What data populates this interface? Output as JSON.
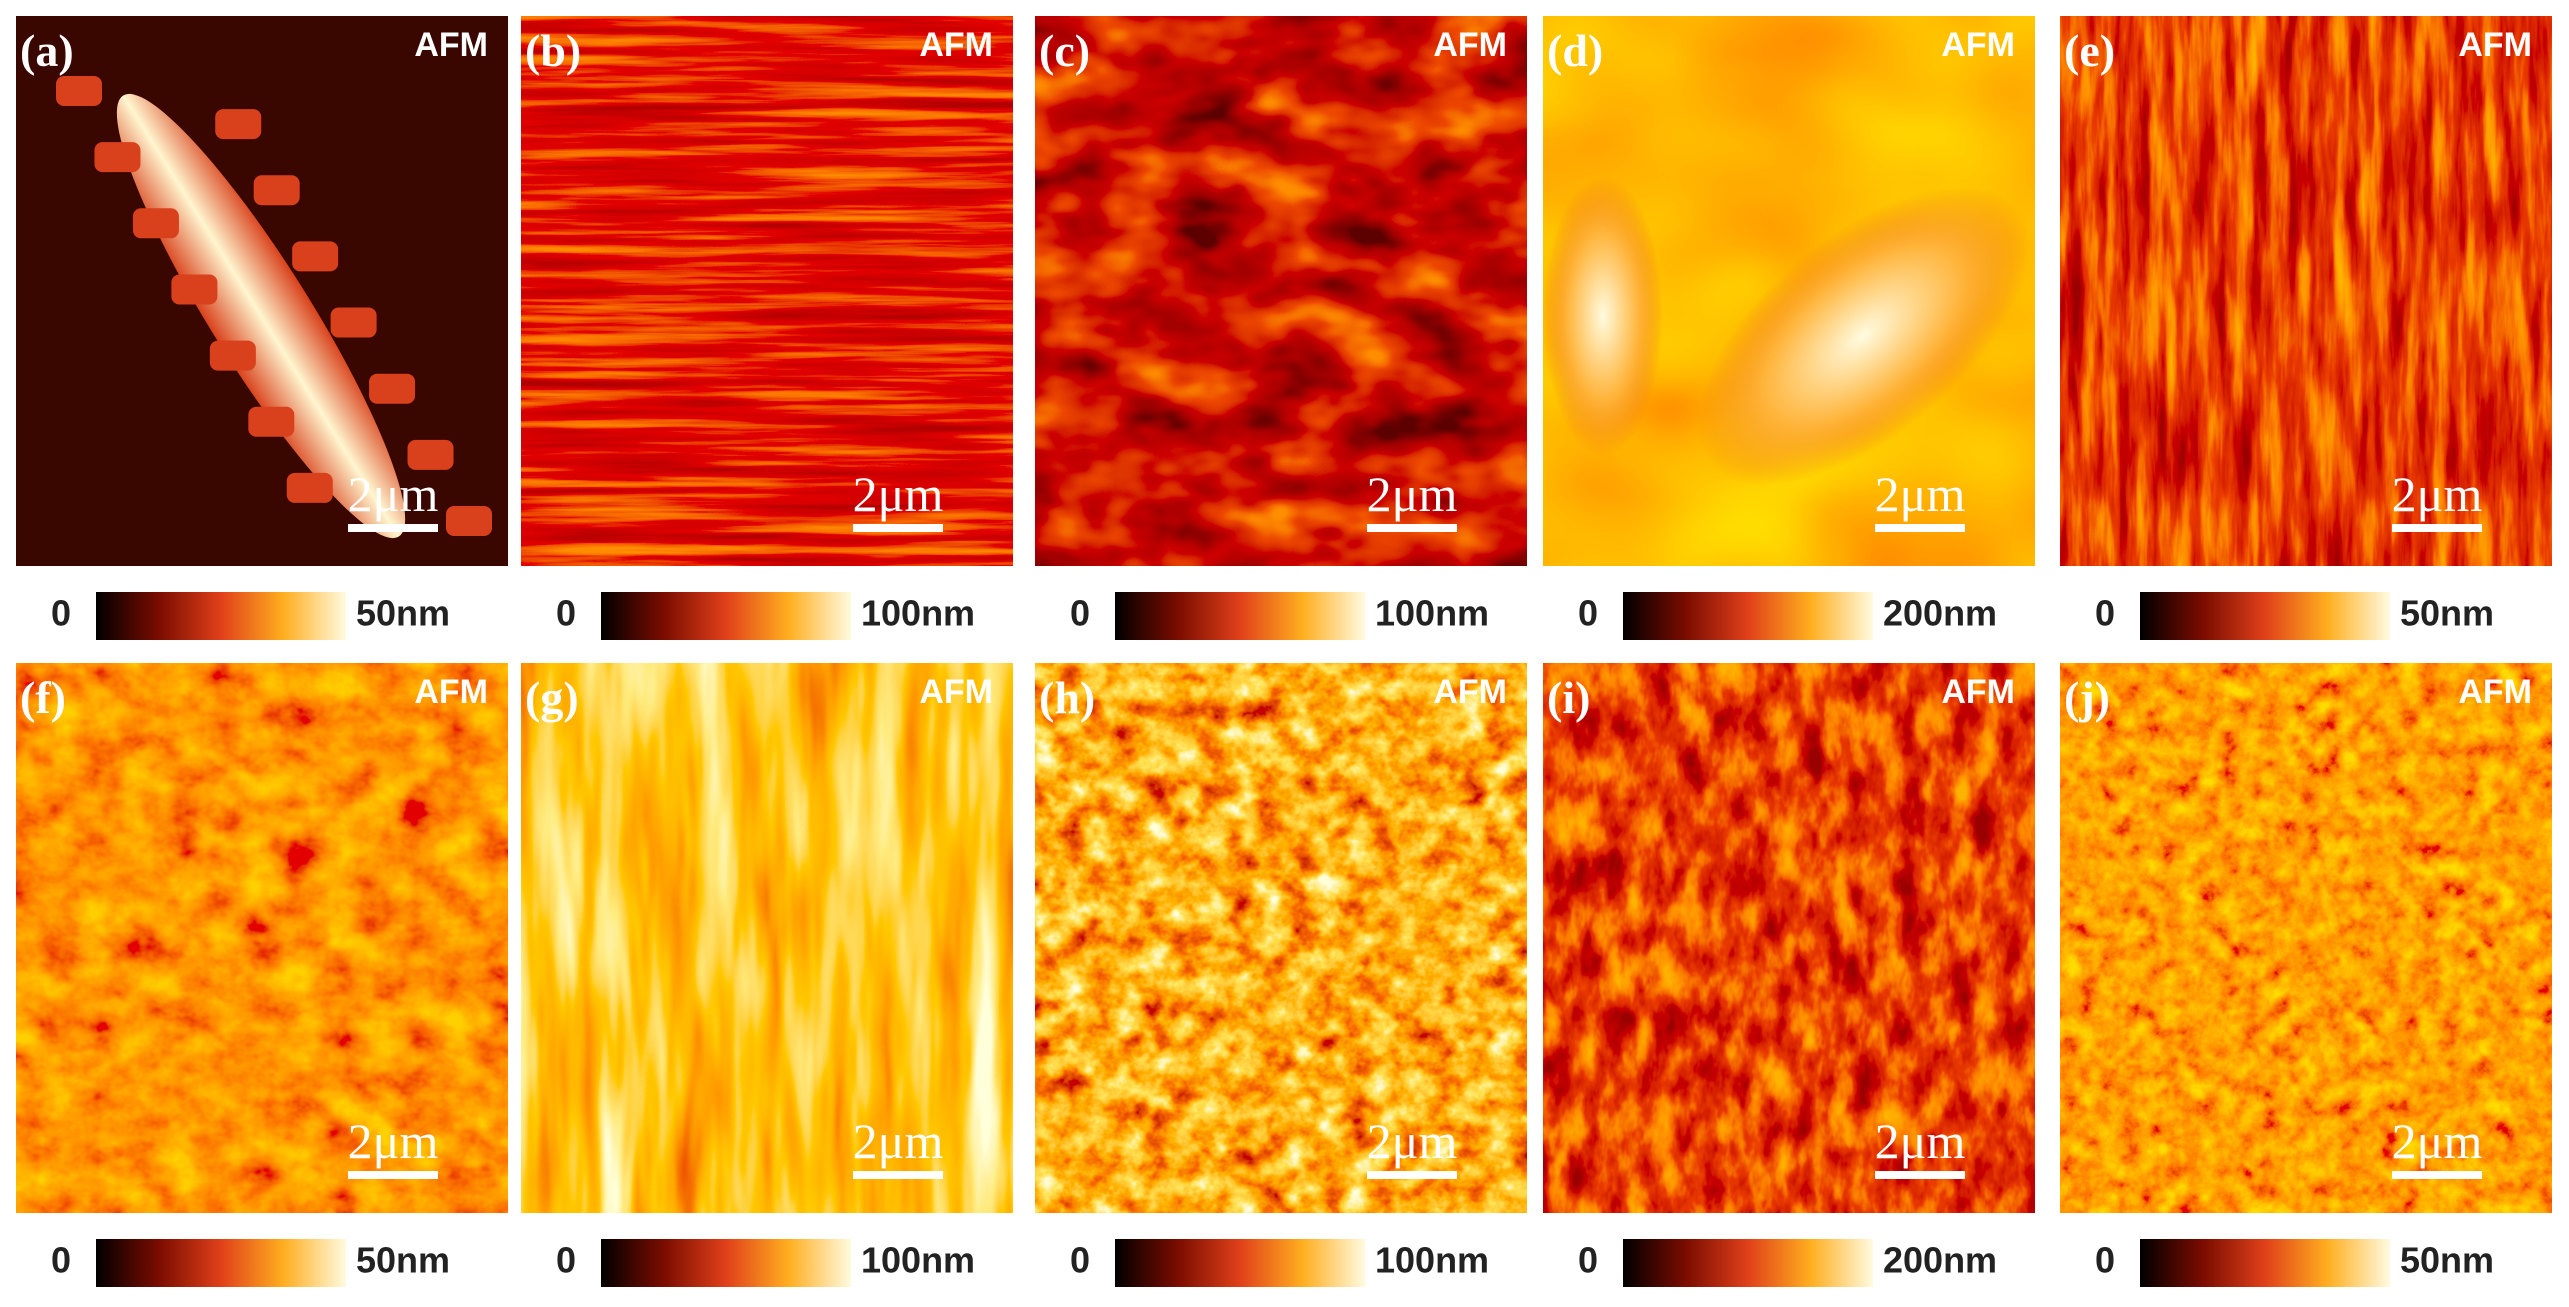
{
  "panels": [
    {
      "label": "(a)",
      "tag": "AFM",
      "scale_bar": "2μm",
      "colorbar": {
        "min": "0",
        "max": "50nm"
      }
    },
    {
      "label": "(b)",
      "tag": "AFM",
      "scale_bar": "2μm",
      "colorbar": {
        "min": "0",
        "max": "100nm"
      }
    },
    {
      "label": "(c)",
      "tag": "AFM",
      "scale_bar": "2μm",
      "colorbar": {
        "min": "0",
        "max": "100nm"
      }
    },
    {
      "label": "(d)",
      "tag": "AFM",
      "scale_bar": "2μm",
      "colorbar": {
        "min": "0",
        "max": "200nm"
      }
    },
    {
      "label": "(e)",
      "tag": "AFM",
      "scale_bar": "2μm",
      "colorbar": {
        "min": "0",
        "max": "50nm"
      }
    },
    {
      "label": "(f)",
      "tag": "AFM",
      "scale_bar": "2μm",
      "colorbar": {
        "min": "0",
        "max": "50nm"
      }
    },
    {
      "label": "(g)",
      "tag": "AFM",
      "scale_bar": "2μm",
      "colorbar": {
        "min": "0",
        "max": "100nm"
      }
    },
    {
      "label": "(h)",
      "tag": "AFM",
      "scale_bar": "2μm",
      "colorbar": {
        "min": "0",
        "max": "100nm"
      }
    },
    {
      "label": "(i)",
      "tag": "AFM",
      "scale_bar": "2μm",
      "colorbar": {
        "min": "0",
        "max": "200nm"
      }
    },
    {
      "label": "(j)",
      "tag": "AFM",
      "scale_bar": "2μm",
      "colorbar": {
        "min": "0",
        "max": "50nm"
      }
    }
  ]
}
